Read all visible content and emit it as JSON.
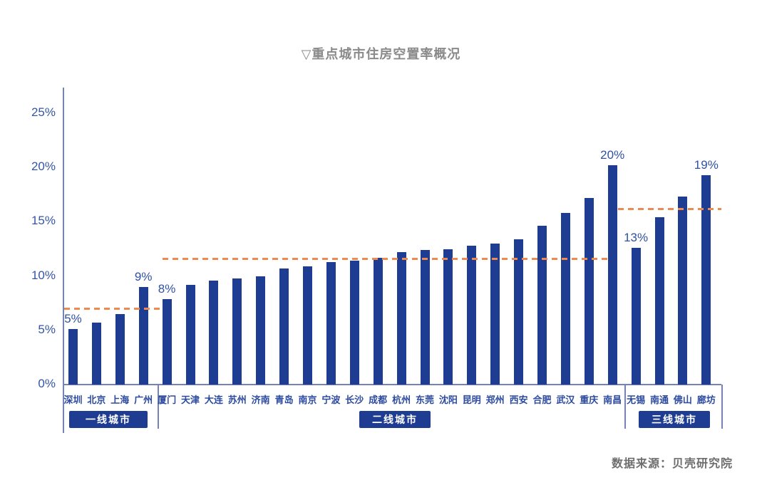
{
  "title": "▽重点城市住房空置率概况",
  "source": "数据来源：贝壳研究院",
  "colors": {
    "bar": "#1e3d92",
    "axis_line": "#7583b8",
    "tick_text": "#3455a6",
    "value_label": "#2f51a3",
    "city_label": "#2c4aa0",
    "badge_bg": "#1e3d92",
    "badge_text": "#ffffff",
    "dashed_average": "#ec8a50",
    "title_text": "#8a8a8a",
    "source_text": "#6e6e6e",
    "background": "#ffffff"
  },
  "chart_data": {
    "type": "bar",
    "title": "▽重点城市住房空置率概况",
    "source": "数据来源：贝壳研究院",
    "unit": "%",
    "grid": false,
    "ylim": [
      0,
      25
    ],
    "y_tick_values": [
      0,
      5,
      10,
      15,
      20,
      25
    ],
    "y_tick_labels": [
      "0%",
      "5%",
      "10%",
      "15%",
      "20%",
      "25%"
    ],
    "categories": [
      "深圳",
      "北京",
      "上海",
      "广州",
      "厦门",
      "天津",
      "大连",
      "苏州",
      "济南",
      "青岛",
      "南京",
      "宁波",
      "长沙",
      "成都",
      "杭州",
      "东莞",
      "沈阳",
      "昆明",
      "郑州",
      "西安",
      "合肥",
      "武汉",
      "重庆",
      "南昌",
      "无锡",
      "南通",
      "佛山",
      "廊坊"
    ],
    "values": [
      5.1,
      5.7,
      6.5,
      9.0,
      7.9,
      9.2,
      9.6,
      9.8,
      10.0,
      10.7,
      10.9,
      11.3,
      11.4,
      11.7,
      12.2,
      12.4,
      12.5,
      12.8,
      13.0,
      13.4,
      14.6,
      15.8,
      17.2,
      20.2,
      12.6,
      15.4,
      17.3,
      19.3
    ],
    "point_labels": [
      "5%",
      "",
      "",
      "9%",
      "8%",
      "",
      "",
      "",
      "",
      "",
      "",
      "",
      "",
      "",
      "",
      "",
      "",
      "",
      "",
      "",
      "",
      "",
      "",
      "20%",
      "13%",
      "",
      "",
      "19%"
    ],
    "tiers": [
      {
        "label": "一线城市",
        "city_index_range": [
          0,
          3
        ],
        "average_line_pct": 7.0
      },
      {
        "label": "二线城市",
        "city_index_range": [
          4,
          23
        ],
        "average_line_pct": 11.6
      },
      {
        "label": "三线城市",
        "city_index_range": [
          24,
          27
        ],
        "average_line_pct": 16.2
      }
    ]
  }
}
